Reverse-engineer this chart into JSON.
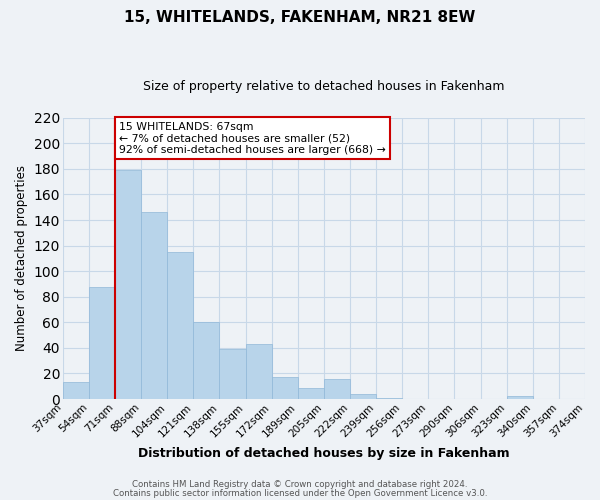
{
  "title": "15, WHITELANDS, FAKENHAM, NR21 8EW",
  "subtitle": "Size of property relative to detached houses in Fakenham",
  "xlabel": "Distribution of detached houses by size in Fakenham",
  "ylabel": "Number of detached properties",
  "bar_values": [
    13,
    88,
    179,
    146,
    115,
    60,
    39,
    43,
    17,
    9,
    16,
    4,
    1,
    0,
    0,
    0,
    0,
    2,
    0,
    0
  ],
  "categories": [
    "37sqm",
    "54sqm",
    "71sqm",
    "88sqm",
    "104sqm",
    "121sqm",
    "138sqm",
    "155sqm",
    "172sqm",
    "189sqm",
    "205sqm",
    "222sqm",
    "239sqm",
    "256sqm",
    "273sqm",
    "290sqm",
    "306sqm",
    "323sqm",
    "340sqm",
    "357sqm",
    "374sqm"
  ],
  "bar_color": "#b8d4ea",
  "bar_edge_color": "#90b8d8",
  "vline_x": 2,
  "vline_color": "#cc0000",
  "ylim": [
    0,
    220
  ],
  "yticks": [
    0,
    20,
    40,
    60,
    80,
    100,
    120,
    140,
    160,
    180,
    200,
    220
  ],
  "annotation_title": "15 WHITELANDS: 67sqm",
  "annotation_line1": "← 7% of detached houses are smaller (52)",
  "annotation_line2": "92% of semi-detached houses are larger (668) →",
  "annotation_box_color": "#ffffff",
  "annotation_box_edge": "#cc0000",
  "footer1": "Contains HM Land Registry data © Crown copyright and database right 2024.",
  "footer2": "Contains public sector information licensed under the Open Government Licence v3.0.",
  "grid_color": "#c8d8e8",
  "background_color": "#eef2f6"
}
